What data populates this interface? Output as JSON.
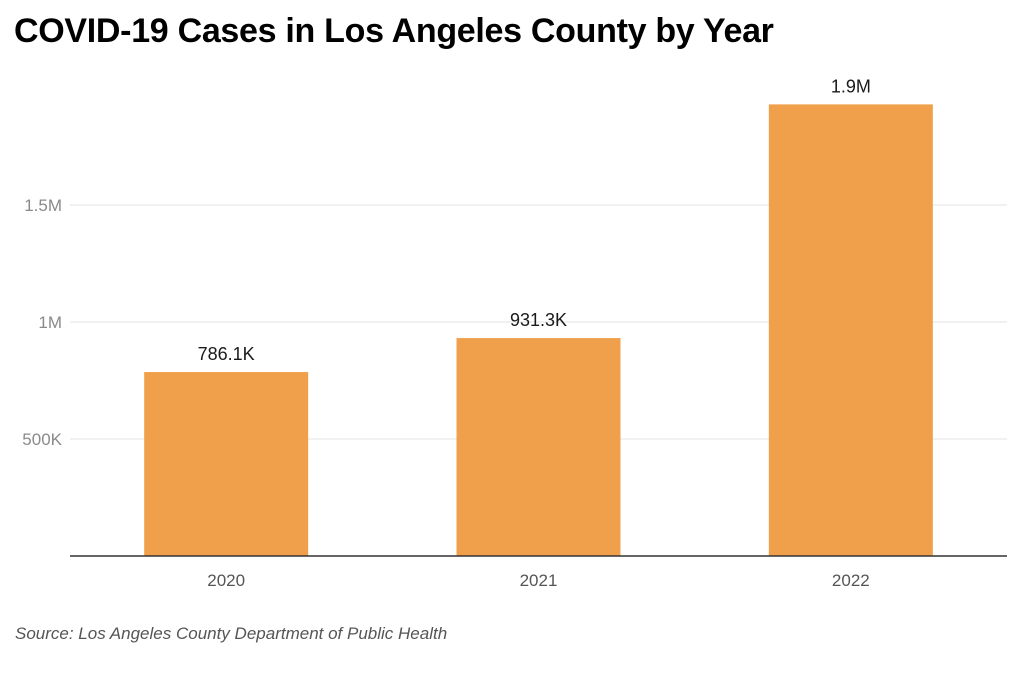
{
  "chart_data": {
    "type": "bar",
    "title": "COVID-19 Cases in Los Angeles County by Year",
    "categories": [
      "2020",
      "2021",
      "2022"
    ],
    "values": [
      786100,
      931300,
      1930000
    ],
    "data_labels": [
      "786.1K",
      "931.3K",
      "1.9M"
    ],
    "yticks": [
      500000,
      1000000,
      1500000
    ],
    "ytick_labels": [
      "500K",
      "1M",
      "1.5M"
    ],
    "ylim": [
      0,
      2000000
    ],
    "xlabel": "",
    "ylabel": "",
    "grid": true,
    "bar_color": "#f0a04b"
  },
  "source": "Source: Los Angeles County Department of Public Health"
}
